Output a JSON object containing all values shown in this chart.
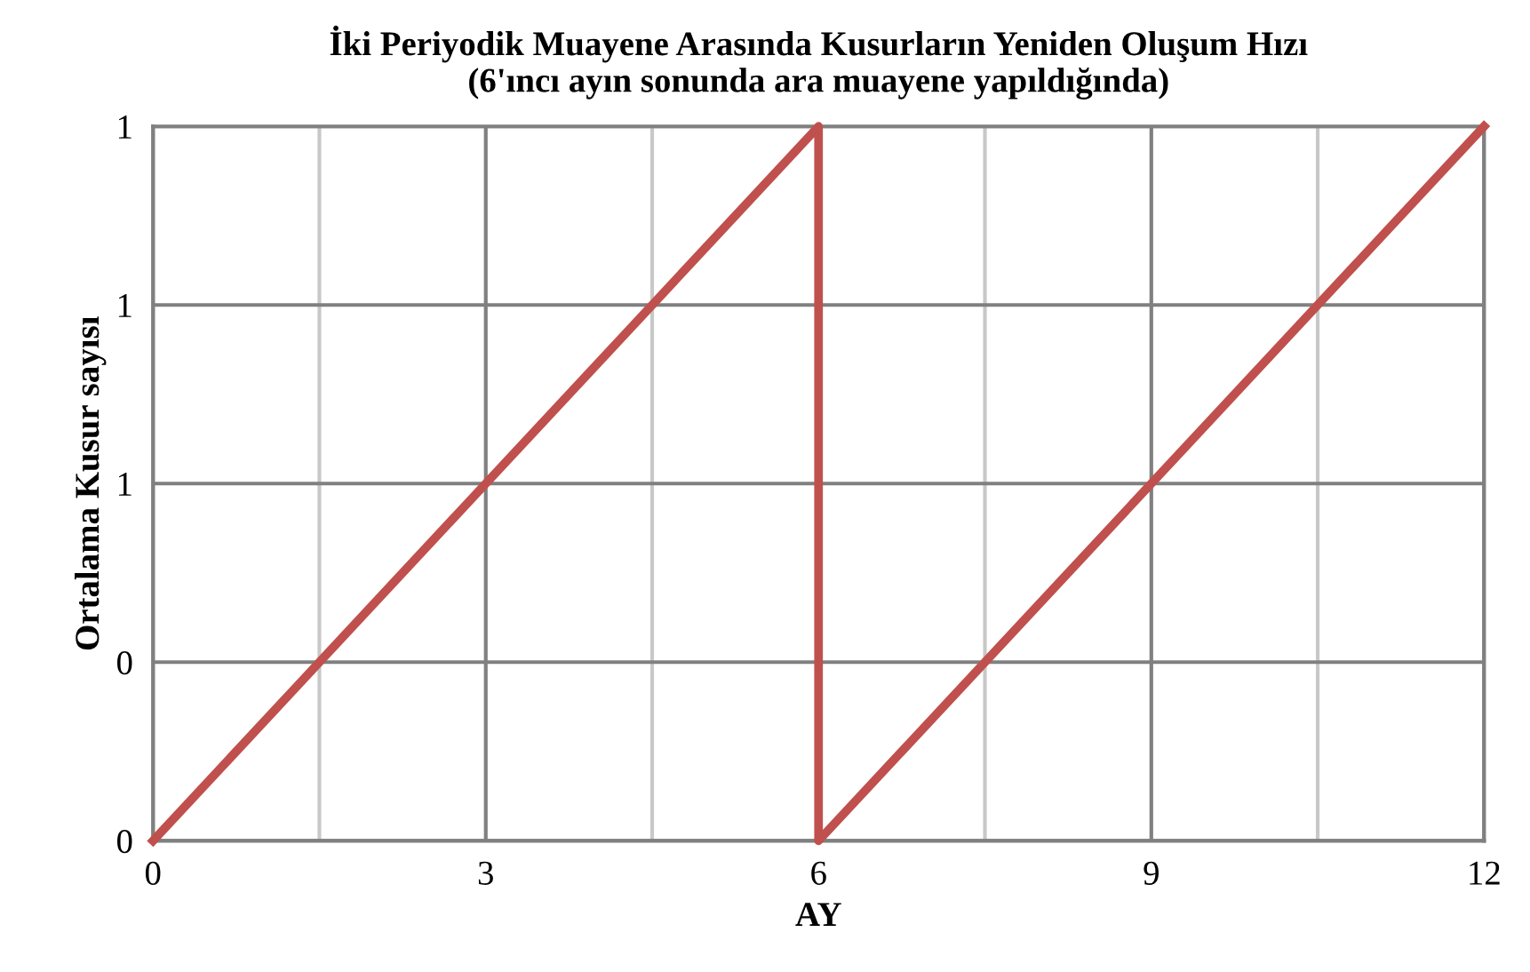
{
  "chart_data": {
    "type": "line",
    "title": "İki Periyodik Muayene Arasında Kusurların Yeniden Oluşum Hızı\n(6'ıncı ayın sonunda ara muayene yapıldığında)",
    "xlabel": "AY",
    "ylabel": "Ortalama Kusur sayısı",
    "series": [
      {
        "x": [
          0,
          6,
          6,
          12
        ],
        "values": [
          0,
          1,
          0,
          1
        ],
        "color": "#c0504d"
      }
    ],
    "xlim": [
      0,
      12
    ],
    "ylim": [
      0,
      1
    ],
    "xticks": [
      0,
      {
        "value": 1.5,
        "label": null
      },
      3,
      {
        "value": 4.5,
        "label": null
      },
      6,
      {
        "value": 7.5,
        "label": null
      },
      9,
      {
        "value": 10.5,
        "label": null
      },
      12
    ],
    "yticks": [
      {
        "value": 0,
        "label": "0"
      },
      {
        "value": 0.25,
        "label": "0"
      },
      {
        "value": 0.5,
        "label": "1"
      },
      {
        "value": 0.75,
        "label": "1"
      },
      {
        "value": 1,
        "label": "1"
      }
    ],
    "grid": true,
    "marker": "none",
    "line_style": "solid"
  }
}
